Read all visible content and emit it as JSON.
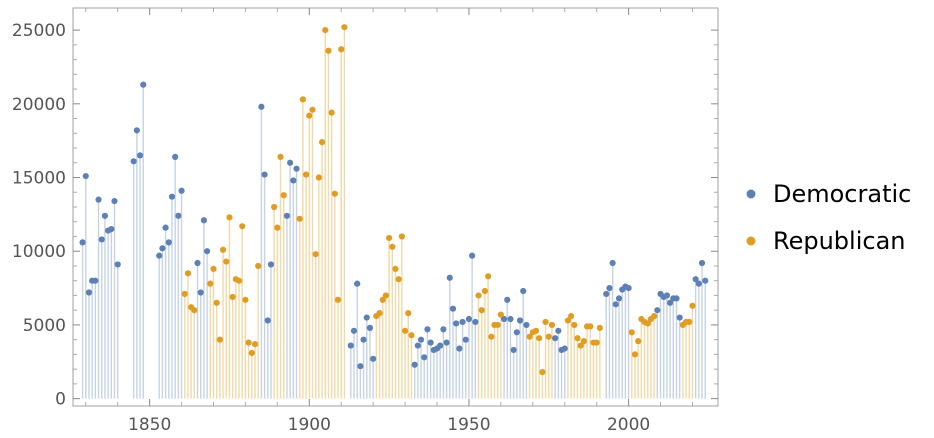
{
  "chart_data": {
    "type": "scatter",
    "style": "stem",
    "x_range": [
      1826,
      2028
    ],
    "y_range": [
      -500,
      26500
    ],
    "x_ticks": [
      1850,
      1900,
      1950,
      2000
    ],
    "y_ticks": [
      0,
      5000,
      10000,
      15000,
      20000,
      25000
    ],
    "x_tick_labels": [
      "1850",
      "1900",
      "1950",
      "2000"
    ],
    "y_tick_labels": [
      "0",
      "5000",
      "10000",
      "15000",
      "20000",
      "25000"
    ],
    "grid": false,
    "legend_position": "right",
    "colors": {
      "Democratic": "#5e81b5",
      "Republican": "#e19c24",
      "Democratic_stem": "#c6d3e6",
      "Republican_stem": "#f3d9a6",
      "frame": "#a0a0a0"
    },
    "series": [
      {
        "name": "Democratic",
        "points": [
          [
            1829,
            10600
          ],
          [
            1830,
            15100
          ],
          [
            1831,
            7200
          ],
          [
            1832,
            8000
          ],
          [
            1833,
            8000
          ],
          [
            1834,
            13500
          ],
          [
            1835,
            10800
          ],
          [
            1836,
            12400
          ],
          [
            1837,
            11400
          ],
          [
            1838,
            11500
          ],
          [
            1839,
            13400
          ],
          [
            1840,
            9100
          ],
          [
            1845,
            16100
          ],
          [
            1846,
            18200
          ],
          [
            1847,
            16500
          ],
          [
            1848,
            21300
          ],
          [
            1853,
            9700
          ],
          [
            1854,
            10200
          ],
          [
            1855,
            11600
          ],
          [
            1856,
            10600
          ],
          [
            1857,
            13700
          ],
          [
            1858,
            16400
          ],
          [
            1859,
            12400
          ],
          [
            1860,
            14100
          ],
          [
            1865,
            9200
          ],
          [
            1866,
            7200
          ],
          [
            1867,
            12100
          ],
          [
            1868,
            10000
          ],
          [
            1885,
            19800
          ],
          [
            1886,
            15200
          ],
          [
            1887,
            5300
          ],
          [
            1888,
            9100
          ],
          [
            1893,
            12400
          ],
          [
            1894,
            16000
          ],
          [
            1895,
            14800
          ],
          [
            1896,
            15600
          ],
          [
            1913,
            3600
          ],
          [
            1914,
            4600
          ],
          [
            1915,
            7800
          ],
          [
            1916,
            2200
          ],
          [
            1917,
            4000
          ],
          [
            1918,
            5500
          ],
          [
            1919,
            4800
          ],
          [
            1920,
            2700
          ],
          [
            1933,
            2300
          ],
          [
            1934,
            3600
          ],
          [
            1935,
            4000
          ],
          [
            1936,
            2800
          ],
          [
            1937,
            4700
          ],
          [
            1938,
            3800
          ],
          [
            1939,
            3300
          ],
          [
            1940,
            3400
          ],
          [
            1941,
            3600
          ],
          [
            1942,
            4700
          ],
          [
            1943,
            3800
          ],
          [
            1944,
            8200
          ],
          [
            1945,
            6100
          ],
          [
            1946,
            5100
          ],
          [
            1947,
            3400
          ],
          [
            1948,
            5200
          ],
          [
            1949,
            4000
          ],
          [
            1950,
            5400
          ],
          [
            1951,
            9700
          ],
          [
            1952,
            5200
          ],
          [
            1961,
            5400
          ],
          [
            1962,
            6700
          ],
          [
            1963,
            5400
          ],
          [
            1964,
            3300
          ],
          [
            1965,
            4500
          ],
          [
            1966,
            5300
          ],
          [
            1967,
            7300
          ],
          [
            1968,
            5000
          ],
          [
            1977,
            4100
          ],
          [
            1978,
            4600
          ],
          [
            1979,
            3300
          ],
          [
            1980,
            3400
          ],
          [
            1993,
            7100
          ],
          [
            1994,
            7500
          ],
          [
            1995,
            9200
          ],
          [
            1996,
            6400
          ],
          [
            1997,
            6800
          ],
          [
            1998,
            7400
          ],
          [
            1999,
            7600
          ],
          [
            2000,
            7500
          ],
          [
            2009,
            6000
          ],
          [
            2010,
            7100
          ],
          [
            2011,
            6900
          ],
          [
            2012,
            7000
          ],
          [
            2013,
            6500
          ],
          [
            2014,
            6800
          ],
          [
            2015,
            6800
          ],
          [
            2016,
            5500
          ],
          [
            2021,
            8100
          ],
          [
            2022,
            7800
          ],
          [
            2023,
            9200
          ],
          [
            2024,
            8000
          ]
        ]
      },
      {
        "name": "Republican",
        "points": [
          [
            1861,
            7100
          ],
          [
            1862,
            8500
          ],
          [
            1863,
            6200
          ],
          [
            1864,
            6000
          ],
          [
            1869,
            7800
          ],
          [
            1870,
            8800
          ],
          [
            1871,
            6500
          ],
          [
            1872,
            4000
          ],
          [
            1873,
            10100
          ],
          [
            1874,
            9300
          ],
          [
            1875,
            12300
          ],
          [
            1876,
            6900
          ],
          [
            1877,
            8100
          ],
          [
            1878,
            8000
          ],
          [
            1879,
            11700
          ],
          [
            1880,
            6700
          ],
          [
            1881,
            3800
          ],
          [
            1882,
            3100
          ],
          [
            1883,
            3700
          ],
          [
            1884,
            9000
          ],
          [
            1889,
            13000
          ],
          [
            1890,
            11600
          ],
          [
            1891,
            16400
          ],
          [
            1892,
            13800
          ],
          [
            1897,
            12200
          ],
          [
            1898,
            20300
          ],
          [
            1899,
            15200
          ],
          [
            1900,
            19200
          ],
          [
            1901,
            19600
          ],
          [
            1902,
            9800
          ],
          [
            1903,
            15000
          ],
          [
            1904,
            17400
          ],
          [
            1905,
            25000
          ],
          [
            1906,
            23600
          ],
          [
            1907,
            19400
          ],
          [
            1908,
            13900
          ],
          [
            1909,
            6700
          ],
          [
            1910,
            23700
          ],
          [
            1911,
            25200
          ],
          [
            1921,
            5600
          ],
          [
            1922,
            5800
          ],
          [
            1923,
            6700
          ],
          [
            1924,
            7000
          ],
          [
            1925,
            10900
          ],
          [
            1926,
            10300
          ],
          [
            1927,
            8800
          ],
          [
            1928,
            8100
          ],
          [
            1929,
            11000
          ],
          [
            1930,
            4600
          ],
          [
            1931,
            5800
          ],
          [
            1932,
            4300
          ],
          [
            1953,
            7000
          ],
          [
            1954,
            6000
          ],
          [
            1955,
            7300
          ],
          [
            1956,
            8300
          ],
          [
            1957,
            4200
          ],
          [
            1958,
            5000
          ],
          [
            1959,
            5000
          ],
          [
            1960,
            5700
          ],
          [
            1969,
            4200
          ],
          [
            1970,
            4500
          ],
          [
            1971,
            4600
          ],
          [
            1972,
            4100
          ],
          [
            1973,
            1800
          ],
          [
            1974,
            5200
          ],
          [
            1975,
            4200
          ],
          [
            1976,
            5000
          ],
          [
            1981,
            5300
          ],
          [
            1982,
            5600
          ],
          [
            1983,
            5000
          ],
          [
            1984,
            4100
          ],
          [
            1985,
            3600
          ],
          [
            1986,
            3900
          ],
          [
            1987,
            4900
          ],
          [
            1988,
            4900
          ],
          [
            1989,
            3800
          ],
          [
            1990,
            3800
          ],
          [
            1991,
            4800
          ],
          [
            2001,
            4500
          ],
          [
            2002,
            3000
          ],
          [
            2003,
            3900
          ],
          [
            2004,
            5400
          ],
          [
            2005,
            5200
          ],
          [
            2006,
            5100
          ],
          [
            2007,
            5400
          ],
          [
            2008,
            5600
          ],
          [
            2017,
            5000
          ],
          [
            2018,
            5200
          ],
          [
            2019,
            5200
          ],
          [
            2020,
            6300
          ]
        ]
      }
    ]
  }
}
